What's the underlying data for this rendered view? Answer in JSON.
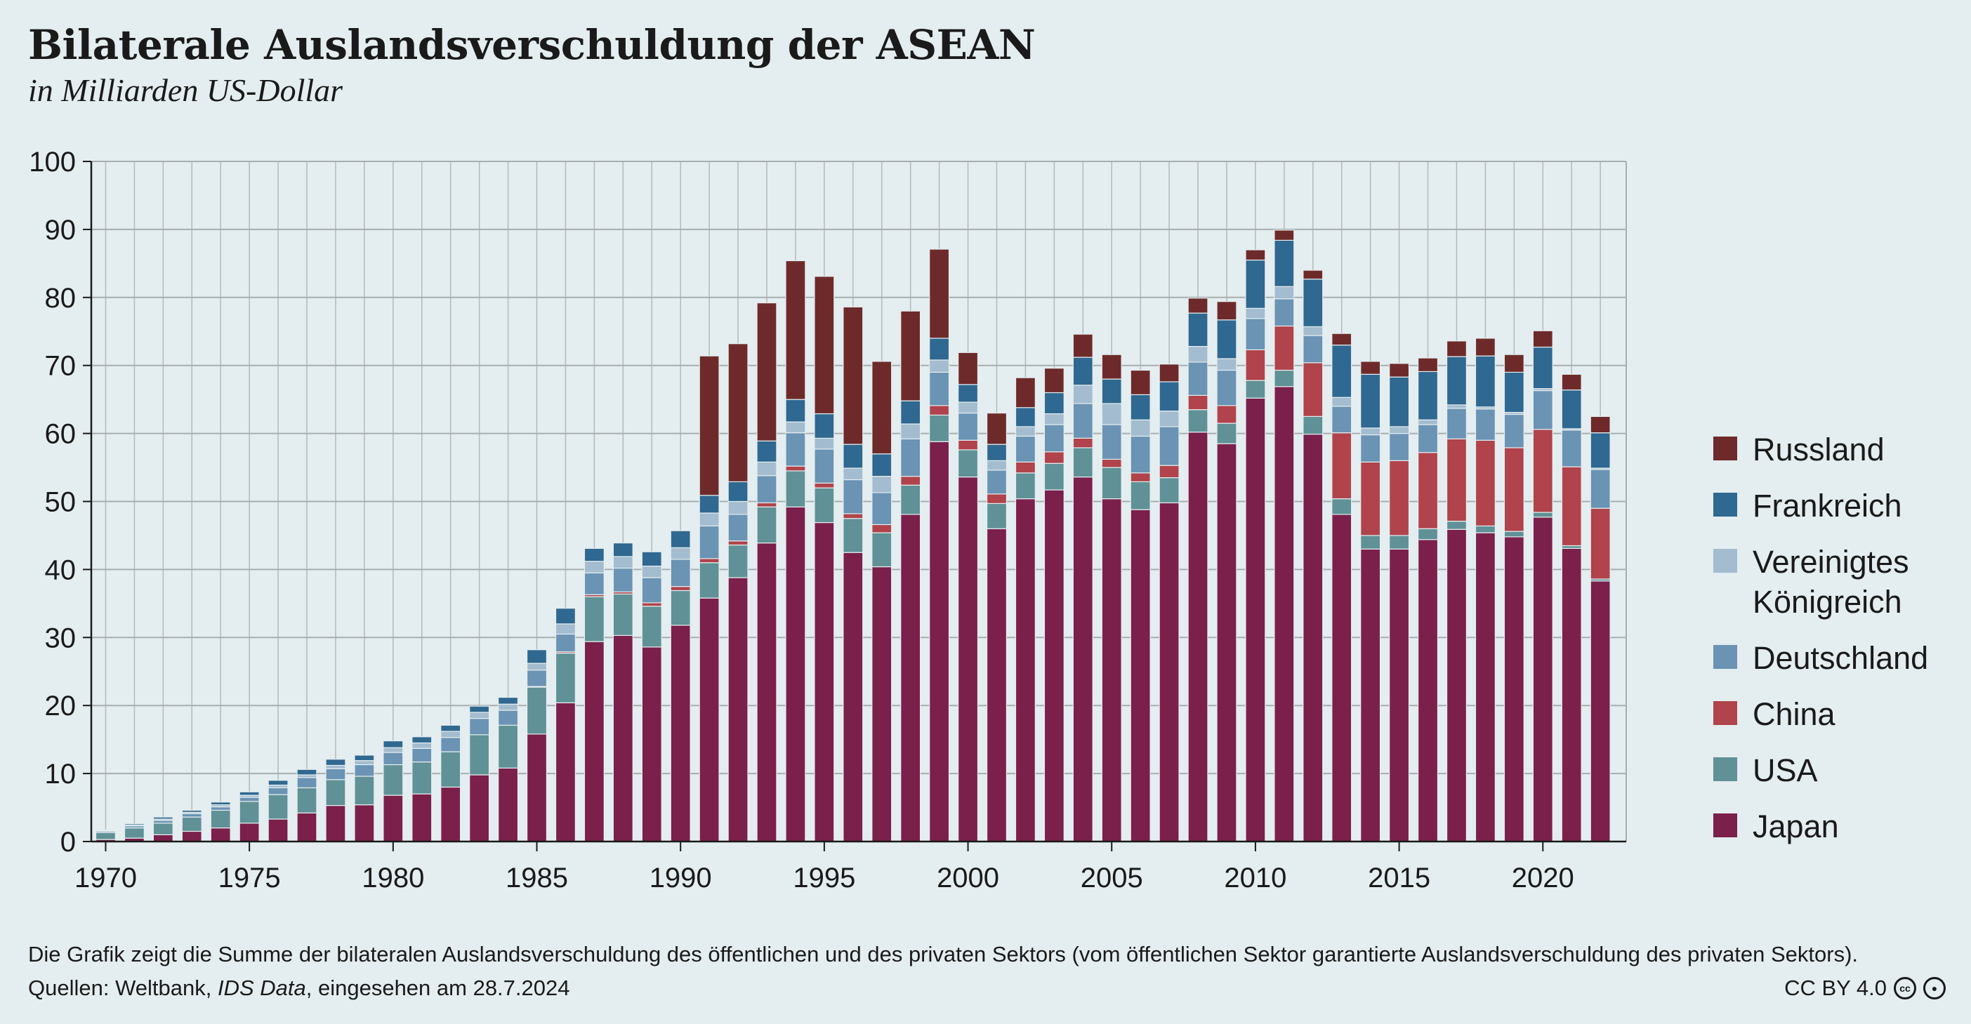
{
  "title": "Bilaterale Auslandsverschuldung der ASEAN",
  "subtitle": "in Milliarden US-Dollar",
  "note": "Die Grafik zeigt die Summe der bilateralen Auslandsverschuldung des öffentlichen und des privaten Sektors (vom öffentlichen Sektor garantierte Auslandsverschuldung des privaten Sektors).",
  "source": {
    "prefix": "Quellen: Weltbank, ",
    "dataset": "IDS Data",
    "suffix": ", eingesehen am 28.7.2024"
  },
  "license": {
    "text": "CC BY 4.0",
    "icon_cc": "cc-icon",
    "icon_by": "by-icon"
  },
  "colors": {
    "Japan": "#7b1f4b",
    "USA": "#5f9196",
    "China": "#b0434b",
    "Deutschland": "#6a93b4",
    "Vereinigtes Königreich": "#a3bccf",
    "Frankreich": "#2f6890",
    "Russland": "#6e2a2a"
  },
  "legend": [
    {
      "name": "Russland",
      "label": "Russland"
    },
    {
      "name": "Frankreich",
      "label": "Frankreich"
    },
    {
      "name": "Vereinigtes Königreich",
      "label": "Vereinigtes Königreich"
    },
    {
      "name": "Deutschland",
      "label": "Deutschland"
    },
    {
      "name": "China",
      "label": "China"
    },
    {
      "name": "USA",
      "label": "USA"
    },
    {
      "name": "Japan",
      "label": "Japan"
    }
  ],
  "chart_data": {
    "type": "bar",
    "stacked": true,
    "ylim": [
      0,
      100
    ],
    "yticks": [
      0,
      10,
      20,
      30,
      40,
      50,
      60,
      70,
      80,
      90,
      100
    ],
    "xticks": [
      1970,
      1975,
      1980,
      1985,
      1990,
      1995,
      2000,
      2005,
      2010,
      2015,
      2020
    ],
    "grid": true,
    "legend_position": "right",
    "x": [
      1970,
      1971,
      1972,
      1973,
      1974,
      1975,
      1976,
      1977,
      1978,
      1979,
      1980,
      1981,
      1982,
      1983,
      1984,
      1985,
      1986,
      1987,
      1988,
      1989,
      1990,
      1991,
      1992,
      1993,
      1994,
      1995,
      1996,
      1997,
      1998,
      1999,
      2000,
      2001,
      2002,
      2003,
      2004,
      2005,
      2006,
      2007,
      2008,
      2009,
      2010,
      2011,
      2012,
      2013,
      2014,
      2015,
      2016,
      2017,
      2018,
      2019,
      2020,
      2021,
      2022
    ],
    "series": [
      {
        "name": "Japan",
        "values": [
          0.3,
          0.5,
          1,
          1.5,
          2,
          2.7,
          3.3,
          4.2,
          5.3,
          5.4,
          6.8,
          7,
          8,
          9.8,
          10.8,
          15.8,
          20.4,
          29.4,
          30.3,
          28.6,
          31.8,
          35.8,
          38.8,
          43.9,
          49.2,
          46.9,
          42.5,
          40.4,
          48.1,
          58.8,
          53.6,
          46,
          50.4,
          51.7,
          53.6,
          50.4,
          48.8,
          49.8,
          60.2,
          58.5,
          65.2,
          66.9,
          59.9,
          48.1,
          43,
          43,
          44.4,
          45.9,
          45.4,
          44.8,
          47.7,
          43.1,
          38.3
        ]
      },
      {
        "name": "USA",
        "values": [
          1,
          1.5,
          1.7,
          2.1,
          2.6,
          3.2,
          3.6,
          3.7,
          3.8,
          4.2,
          4.5,
          4.7,
          5.2,
          5.9,
          6.3,
          6.9,
          7.3,
          6.6,
          6.1,
          6,
          5.1,
          5.2,
          4.8,
          5.3,
          5.3,
          5.1,
          5,
          5,
          4.3,
          3.9,
          4,
          3.7,
          3.8,
          3.9,
          4.3,
          4.6,
          4.1,
          3.7,
          3.3,
          3,
          2.6,
          2.4,
          2.6,
          2.3,
          2,
          2,
          1.6,
          1.2,
          1,
          0.8,
          0.7,
          0.4,
          0.3
        ]
      },
      {
        "name": "China",
        "values": [
          0,
          0,
          0,
          0,
          0,
          0,
          0,
          0,
          0,
          0,
          0,
          0,
          0,
          0,
          0,
          0.1,
          0.2,
          0.3,
          0.3,
          0.5,
          0.6,
          0.6,
          0.6,
          0.6,
          0.7,
          0.7,
          0.7,
          1.2,
          1.3,
          1.4,
          1.4,
          1.4,
          1.6,
          1.7,
          1.4,
          1.2,
          1.3,
          1.8,
          2.1,
          2.6,
          4.5,
          6.5,
          7.9,
          9.7,
          10.8,
          11,
          11.2,
          12.1,
          12.6,
          12.3,
          12.2,
          11.6,
          10.4
        ]
      },
      {
        "name": "Deutschland",
        "values": [
          0.2,
          0.3,
          0.4,
          0.5,
          0.5,
          0.6,
          1,
          1.5,
          1.6,
          1.7,
          1.8,
          2,
          2.1,
          2.4,
          2.2,
          2.4,
          2.6,
          3.2,
          3.5,
          3.7,
          4,
          4.8,
          3.9,
          4,
          4.9,
          5,
          5,
          4.7,
          5.5,
          4.9,
          4,
          3.5,
          3.8,
          4,
          5.1,
          5.1,
          5.4,
          5.7,
          4.9,
          5.2,
          4.6,
          4,
          4,
          3.9,
          4,
          4,
          4.1,
          4.5,
          4.6,
          4.9,
          5.7,
          5.4,
          5.7
        ]
      },
      {
        "name": "Vereinigtes Königreich",
        "values": [
          0.1,
          0.1,
          0.2,
          0.2,
          0.3,
          0.3,
          0.4,
          0.4,
          0.5,
          0.6,
          0.7,
          0.8,
          0.9,
          0.9,
          0.9,
          1,
          1.5,
          1.7,
          1.7,
          1.7,
          1.7,
          1.9,
          1.9,
          2,
          1.6,
          1.6,
          1.7,
          2.4,
          2.2,
          1.8,
          1.6,
          1.4,
          1.4,
          1.6,
          2.7,
          3.1,
          2.4,
          2.3,
          2.3,
          1.7,
          1.5,
          1.8,
          1.3,
          1.3,
          1,
          1,
          0.7,
          0.5,
          0.3,
          0.3,
          0.3,
          0.2,
          0.2
        ]
      },
      {
        "name": "Frankreich",
        "values": [
          0.1,
          0.2,
          0.3,
          0.3,
          0.4,
          0.5,
          0.7,
          0.8,
          0.9,
          0.8,
          1,
          0.9,
          0.9,
          0.9,
          1,
          2,
          2.3,
          1.9,
          2,
          2.1,
          2.5,
          2.6,
          2.9,
          3.1,
          3.3,
          3.6,
          3.5,
          3.3,
          3.4,
          3.2,
          2.6,
          2.4,
          2.8,
          3.1,
          4.1,
          3.6,
          3.7,
          4.3,
          4.9,
          5.7,
          7.1,
          6.8,
          7,
          7.7,
          7.9,
          7.3,
          7.1,
          7.1,
          7.5,
          5.9,
          6.1,
          5.7,
          5.2
        ]
      },
      {
        "name": "Russland",
        "values": [
          0,
          0,
          0,
          0,
          0,
          0,
          0,
          0,
          0,
          0,
          0,
          0,
          0,
          0,
          0,
          0,
          0,
          0,
          0,
          0,
          0,
          20.5,
          20.3,
          20.3,
          20.4,
          20.2,
          20.2,
          13.6,
          13.2,
          13.1,
          4.7,
          4.6,
          4.4,
          3.6,
          3.4,
          3.6,
          3.6,
          2.6,
          2.2,
          2.7,
          1.5,
          1.5,
          1.3,
          1.7,
          1.9,
          2,
          2,
          2.3,
          2.6,
          2.6,
          2.4,
          2.3,
          2.4
        ]
      }
    ]
  }
}
